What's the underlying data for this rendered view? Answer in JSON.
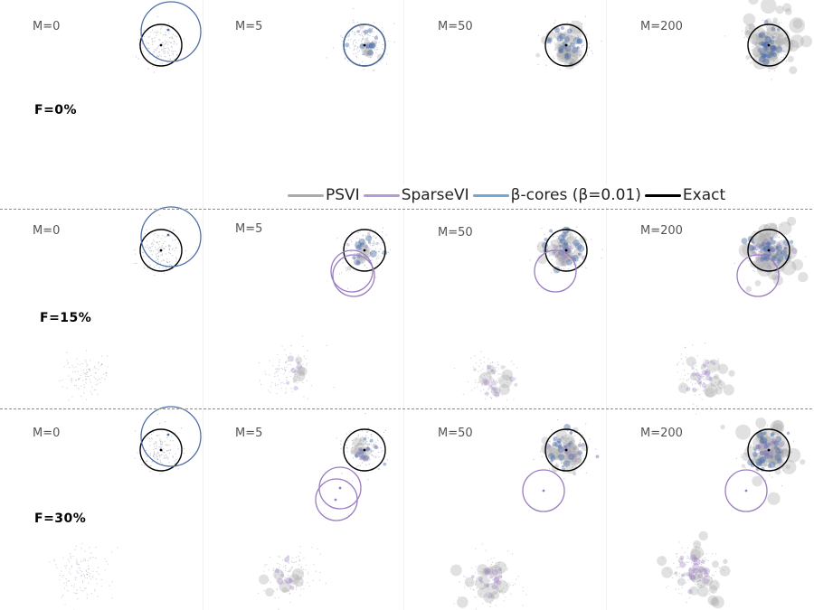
{
  "figure": {
    "rows": [
      {
        "label": "F=0%",
        "panels": [
          {
            "m_label": "M=0",
            "m": 0
          },
          {
            "m_label": "M=5",
            "m": 5
          },
          {
            "m_label": "M=50",
            "m": 50
          },
          {
            "m_label": "M=200",
            "m": 200
          }
        ]
      },
      {
        "label": "F=15%",
        "panels": [
          {
            "m_label": "M=0",
            "m": 0
          },
          {
            "m_label": "M=5",
            "m": 5
          },
          {
            "m_label": "M=50",
            "m": 50
          },
          {
            "m_label": "M=200",
            "m": 200
          }
        ]
      },
      {
        "label": "F=30%",
        "panels": [
          {
            "m_label": "M=0",
            "m": 0
          },
          {
            "m_label": "M=5",
            "m": 5
          },
          {
            "m_label": "M=50",
            "m": 50
          },
          {
            "m_label": "M=200",
            "m": 200
          }
        ]
      }
    ],
    "legend": [
      {
        "label": "PSVI",
        "color": "#aaaaaa"
      },
      {
        "label": "SparseVI",
        "color": "#b59bd6"
      },
      {
        "label": "β-cores (β=0.01)",
        "color": "#6fa8d4"
      },
      {
        "label": "Exact",
        "color": "#000000"
      }
    ],
    "colors": {
      "psvi": "#aaaaaa",
      "sparsevi": "#9a7cc0",
      "beta_cores": "#4f6fa8",
      "exact": "#000000",
      "data_points": "#8c96a8"
    }
  }
}
